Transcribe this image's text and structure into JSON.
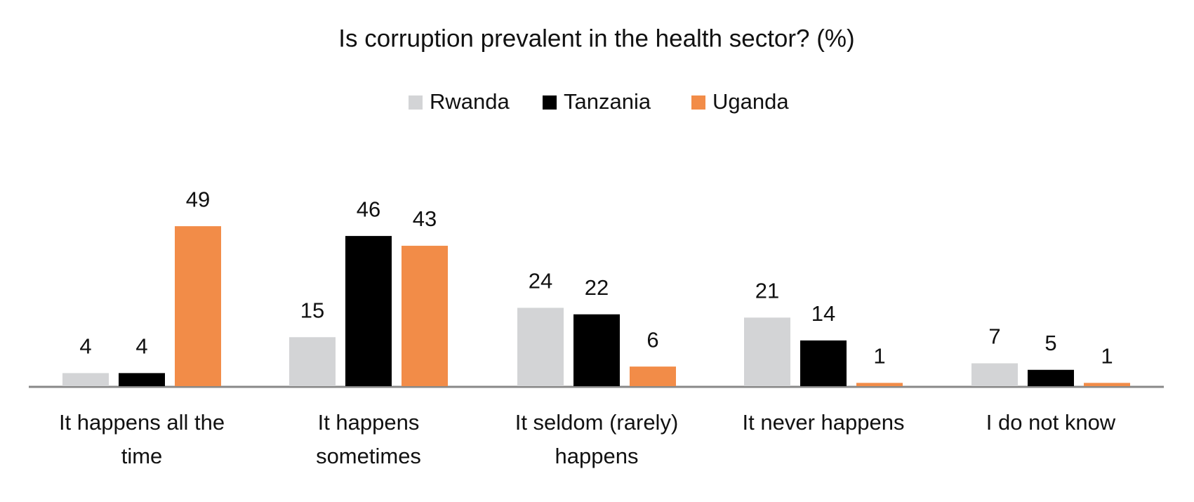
{
  "chart_data": {
    "type": "bar",
    "title": "Is corruption prevalent in the health sector? (%)",
    "categories": [
      "It happens all the time",
      "It happens sometimes",
      "It seldom (rarely) happens",
      "It never happens",
      "I do not know"
    ],
    "series": [
      {
        "name": "Rwanda",
        "color": "#d3d4d6",
        "values": [
          4,
          15,
          24,
          21,
          7
        ]
      },
      {
        "name": "Tanzania",
        "color": "#000000",
        "values": [
          4,
          46,
          22,
          14,
          5
        ]
      },
      {
        "name": "Uganda",
        "color": "#f28c48",
        "values": [
          49,
          43,
          6,
          1,
          1
        ]
      }
    ]
  }
}
